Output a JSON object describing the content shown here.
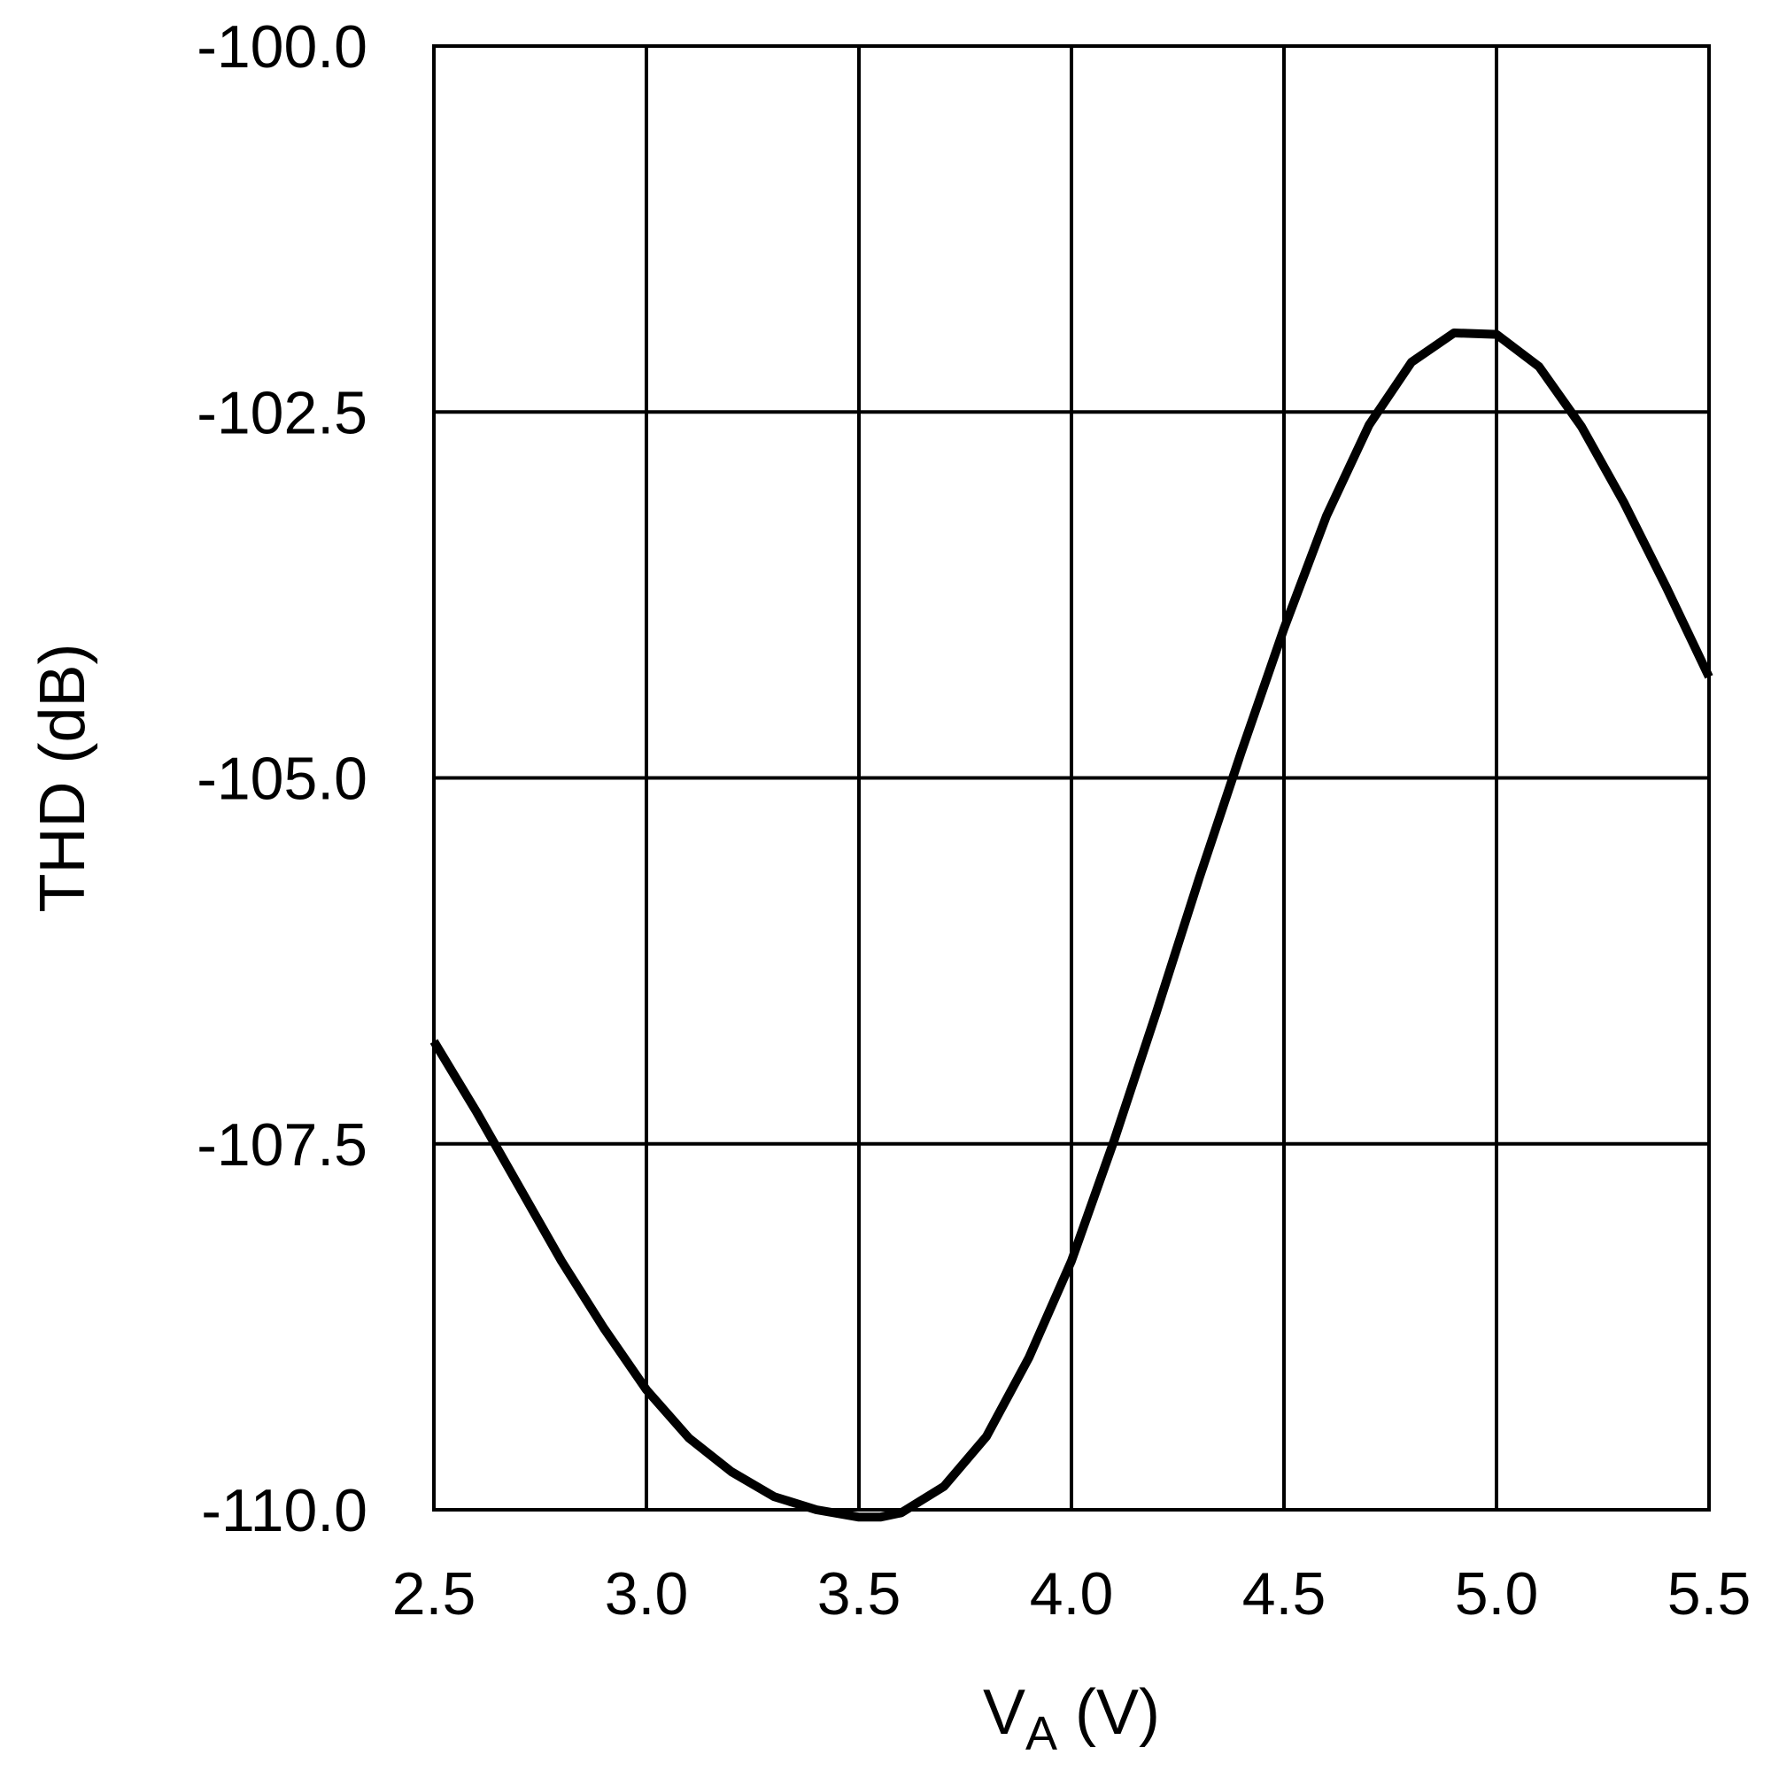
{
  "chart_data": {
    "type": "line",
    "xlabel_main": "V",
    "xlabel_sub": "A",
    "xlabel_unit": " (V)",
    "ylabel": "THD (dB)",
    "xlim": [
      2.5,
      5.5
    ],
    "ylim": [
      -110.0,
      -100.0
    ],
    "x_ticks": [
      "2.5",
      "3.0",
      "3.5",
      "4.0",
      "4.5",
      "5.0",
      "5.5"
    ],
    "y_ticks": [
      "-100.0",
      "-102.5",
      "-105.0",
      "-107.5",
      "-110.0"
    ],
    "grid": true,
    "series": [
      {
        "color": "#000000",
        "x": [
          2.5,
          2.6,
          2.7,
          2.8,
          2.9,
          3.0,
          3.1,
          3.2,
          3.3,
          3.4,
          3.5,
          3.55,
          3.6,
          3.7,
          3.8,
          3.9,
          4.0,
          4.1,
          4.2,
          4.3,
          4.4,
          4.5,
          4.6,
          4.7,
          4.8,
          4.9,
          5.0,
          5.1,
          5.2,
          5.3,
          5.4,
          5.5
        ],
        "y": [
          -106.8,
          -107.28,
          -107.79,
          -108.3,
          -108.76,
          -109.18,
          -109.51,
          -109.74,
          -109.91,
          -110.0,
          -110.05,
          -110.05,
          -110.02,
          -109.84,
          -109.5,
          -108.96,
          -108.3,
          -107.48,
          -106.6,
          -105.69,
          -104.82,
          -103.98,
          -103.21,
          -102.59,
          -102.16,
          -101.96,
          -101.97,
          -102.19,
          -102.6,
          -103.12,
          -103.7,
          -104.31
        ]
      }
    ]
  }
}
